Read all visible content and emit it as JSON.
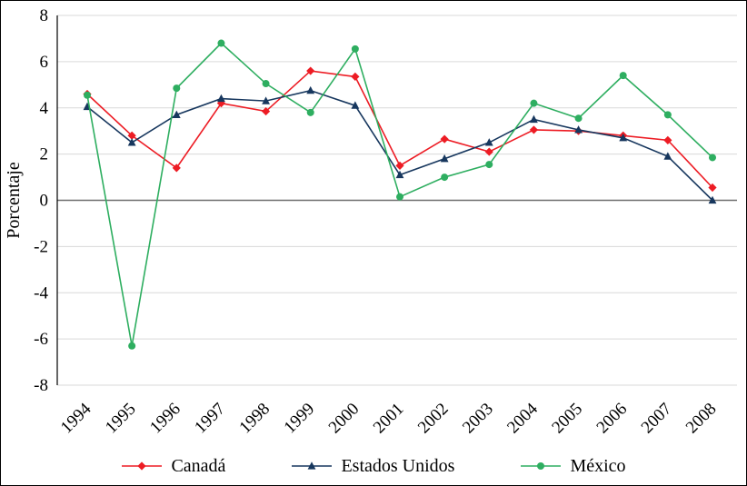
{
  "chart_data": {
    "type": "line",
    "title": "",
    "xlabel": "",
    "ylabel": "Porcentaje",
    "ylim": [
      -8,
      8
    ],
    "y_ticks": [
      8,
      6,
      4,
      2,
      0,
      -2,
      -4,
      -6,
      -8
    ],
    "grid": true,
    "legend_position": "bottom",
    "categories": [
      "1994",
      "1995",
      "1996",
      "1997",
      "1998",
      "1999",
      "2000",
      "2001",
      "2002",
      "2003",
      "2004",
      "2005",
      "2006",
      "2007",
      "2008"
    ],
    "series": [
      {
        "name": "Canadá",
        "color": "#ed1c24",
        "marker": "diamond",
        "values": [
          4.6,
          2.8,
          1.4,
          4.2,
          3.85,
          5.6,
          5.35,
          1.5,
          2.65,
          2.1,
          3.05,
          3.0,
          2.8,
          2.6,
          0.55
        ]
      },
      {
        "name": "Estados Unidos",
        "color": "#17375e",
        "marker": "triangle",
        "values": [
          4.05,
          2.5,
          3.7,
          4.4,
          4.3,
          4.75,
          4.1,
          1.1,
          1.8,
          2.5,
          3.5,
          3.05,
          2.7,
          1.9,
          0.0
        ]
      },
      {
        "name": "México",
        "color": "#2eae60",
        "marker": "circle",
        "values": [
          4.55,
          -6.3,
          4.85,
          6.8,
          5.05,
          3.8,
          6.55,
          0.15,
          1.0,
          1.55,
          4.2,
          3.55,
          5.4,
          3.7,
          1.85
        ]
      }
    ],
    "colors": {
      "gridline": "#d9d9d9",
      "zero_line": "#6e6e6e",
      "axis": "#000000"
    }
  }
}
